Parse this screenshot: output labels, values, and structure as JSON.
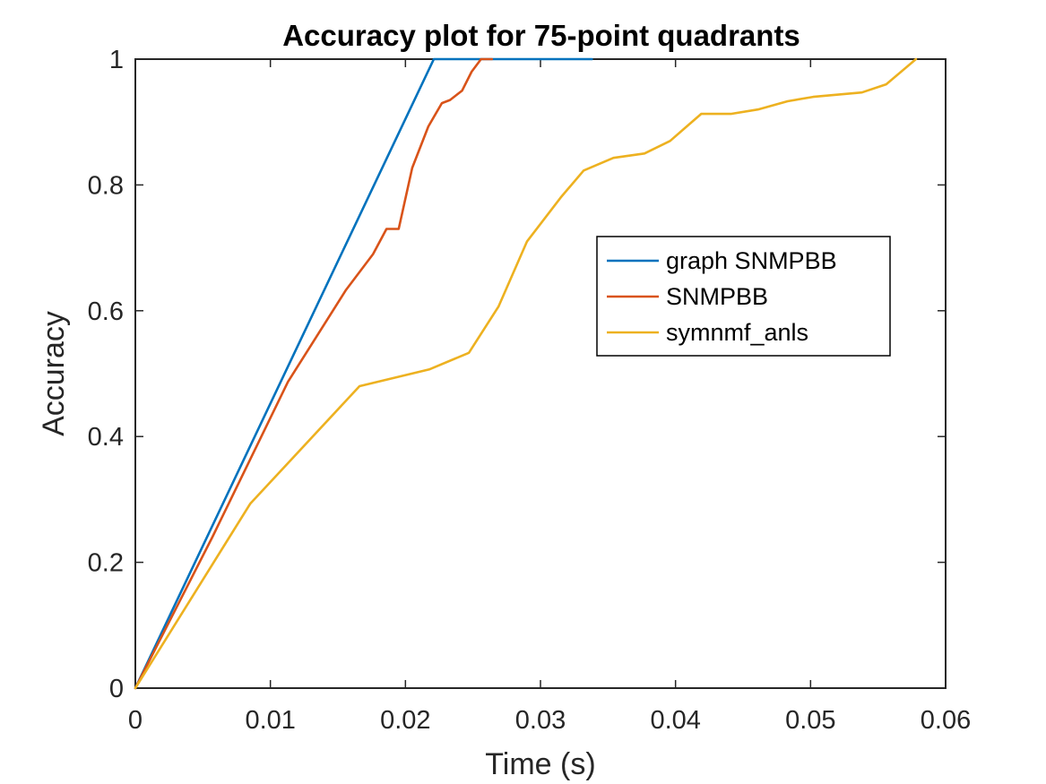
{
  "chart_data": {
    "type": "line",
    "title": "Accuracy plot for 75-point quadrants",
    "xlabel": "Time (s)",
    "ylabel": "Accuracy",
    "xlim": [
      0,
      0.06
    ],
    "ylim": [
      0,
      1
    ],
    "xticks": [
      0,
      0.01,
      0.02,
      0.03,
      0.04,
      0.05,
      0.06
    ],
    "xtick_labels": [
      "0",
      "0.01",
      "0.02",
      "0.03",
      "0.04",
      "0.05",
      "0.06"
    ],
    "yticks": [
      0,
      0.2,
      0.4,
      0.6,
      0.8,
      1
    ],
    "ytick_labels": [
      "0",
      "0.2",
      "0.4",
      "0.6",
      "0.8",
      "1"
    ],
    "grid": false,
    "legend_position": "center-right",
    "series": [
      {
        "name": "graph SNMPBB",
        "color": "#0072BD",
        "points": [
          [
            0,
            0
          ],
          [
            0.0221,
            1
          ],
          [
            0.0338,
            1
          ]
        ]
      },
      {
        "name": "SNMPBB",
        "color": "#D95319",
        "points": [
          [
            0,
            0
          ],
          [
            0.0057,
            0.24
          ],
          [
            0.0113,
            0.487
          ],
          [
            0.0156,
            0.633
          ],
          [
            0.0176,
            0.69
          ],
          [
            0.0186,
            0.73
          ],
          [
            0.0195,
            0.73
          ],
          [
            0.0205,
            0.827
          ],
          [
            0.0217,
            0.893
          ],
          [
            0.0227,
            0.93
          ],
          [
            0.0233,
            0.935
          ],
          [
            0.0242,
            0.95
          ],
          [
            0.0249,
            0.98
          ],
          [
            0.0256,
            1
          ],
          [
            0.0264,
            1
          ]
        ]
      },
      {
        "name": "symnmf_anls",
        "color": "#EDB120",
        "points": [
          [
            0,
            0
          ],
          [
            0.0085,
            0.293
          ],
          [
            0.0166,
            0.48
          ],
          [
            0.0218,
            0.507
          ],
          [
            0.0247,
            0.533
          ],
          [
            0.0269,
            0.607
          ],
          [
            0.029,
            0.71
          ],
          [
            0.0315,
            0.78
          ],
          [
            0.0332,
            0.823
          ],
          [
            0.0354,
            0.843
          ],
          [
            0.0377,
            0.85
          ],
          [
            0.0396,
            0.87
          ],
          [
            0.0419,
            0.913
          ],
          [
            0.0441,
            0.913
          ],
          [
            0.0461,
            0.92
          ],
          [
            0.0483,
            0.933
          ],
          [
            0.0502,
            0.94
          ],
          [
            0.0538,
            0.947
          ],
          [
            0.0556,
            0.96
          ],
          [
            0.0578,
            1
          ]
        ]
      }
    ]
  }
}
